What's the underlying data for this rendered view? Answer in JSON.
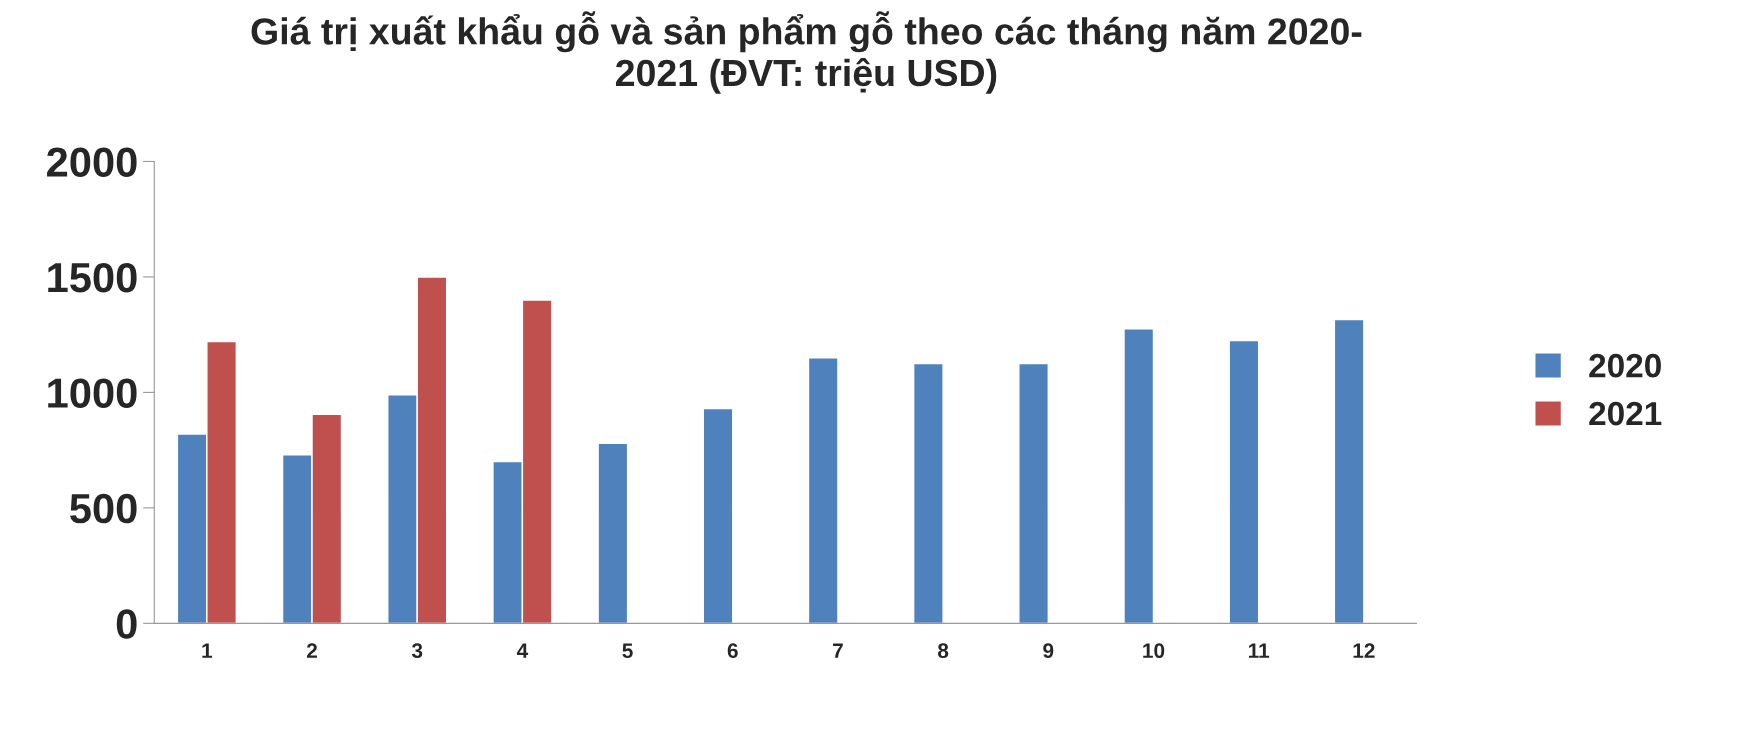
{
  "chart_data": {
    "type": "bar",
    "title": "Giá trị xuất khẩu gỗ và sản phẩm gỗ theo các tháng năm 2020-\n2021 (ĐVT: triệu USD)",
    "categories": [
      "1",
      "2",
      "3",
      "4",
      "5",
      "6",
      "7",
      "8",
      "9",
      "10",
      "11",
      "12"
    ],
    "series": [
      {
        "name": "2020",
        "color": "#4f81bd",
        "values": [
          820,
          730,
          990,
          700,
          780,
          930,
          1150,
          1125,
          1125,
          1275,
          1225,
          1315
        ]
      },
      {
        "name": "2021",
        "color": "#c0504d",
        "values": [
          1220,
          905,
          1500,
          1400,
          null,
          null,
          null,
          null,
          null,
          null,
          null,
          null
        ]
      }
    ],
    "ylim": [
      0,
      2000
    ],
    "yticks": [
      0,
      500,
      1000,
      1500,
      2000
    ],
    "grid": false,
    "legend": "right"
  }
}
